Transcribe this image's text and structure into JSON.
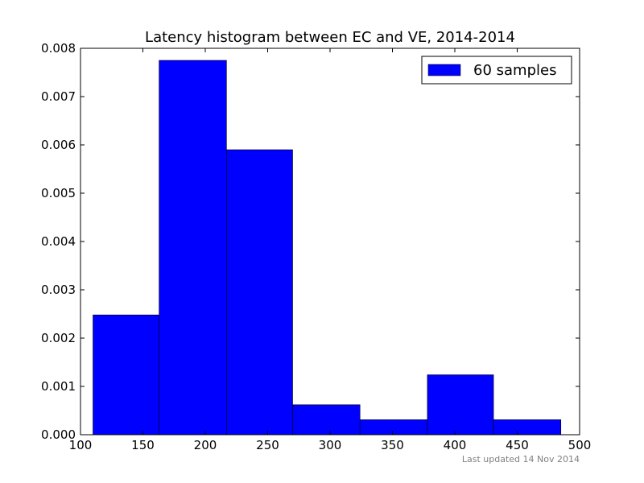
{
  "chart_data": {
    "type": "bar",
    "title": "Latency histogram between EC and VE, 2014-2014",
    "xlabel": "",
    "ylabel": "",
    "bins": [
      {
        "start": 110,
        "end": 163,
        "value": 0.00248
      },
      {
        "start": 163,
        "end": 217,
        "value": 0.00775
      },
      {
        "start": 217,
        "end": 270,
        "value": 0.0059
      },
      {
        "start": 270,
        "end": 324,
        "value": 0.00062
      },
      {
        "start": 324,
        "end": 378,
        "value": 0.00031
      },
      {
        "start": 378,
        "end": 431,
        "value": 0.00124
      },
      {
        "start": 431,
        "end": 485,
        "value": 0.00031
      }
    ],
    "xlim": [
      100,
      500
    ],
    "ylim": [
      0,
      0.008
    ],
    "xticks": [
      "100",
      "150",
      "200",
      "250",
      "300",
      "350",
      "400",
      "450",
      "500"
    ],
    "yticks": [
      "0.000",
      "0.001",
      "0.002",
      "0.003",
      "0.004",
      "0.005",
      "0.006",
      "0.007",
      "0.008"
    ],
    "series_name": "60 samples",
    "bar_color": "#0000ff",
    "legend_position": "top-right",
    "grid": false
  },
  "footer": {
    "text": "Last updated 14 Nov 2014"
  }
}
